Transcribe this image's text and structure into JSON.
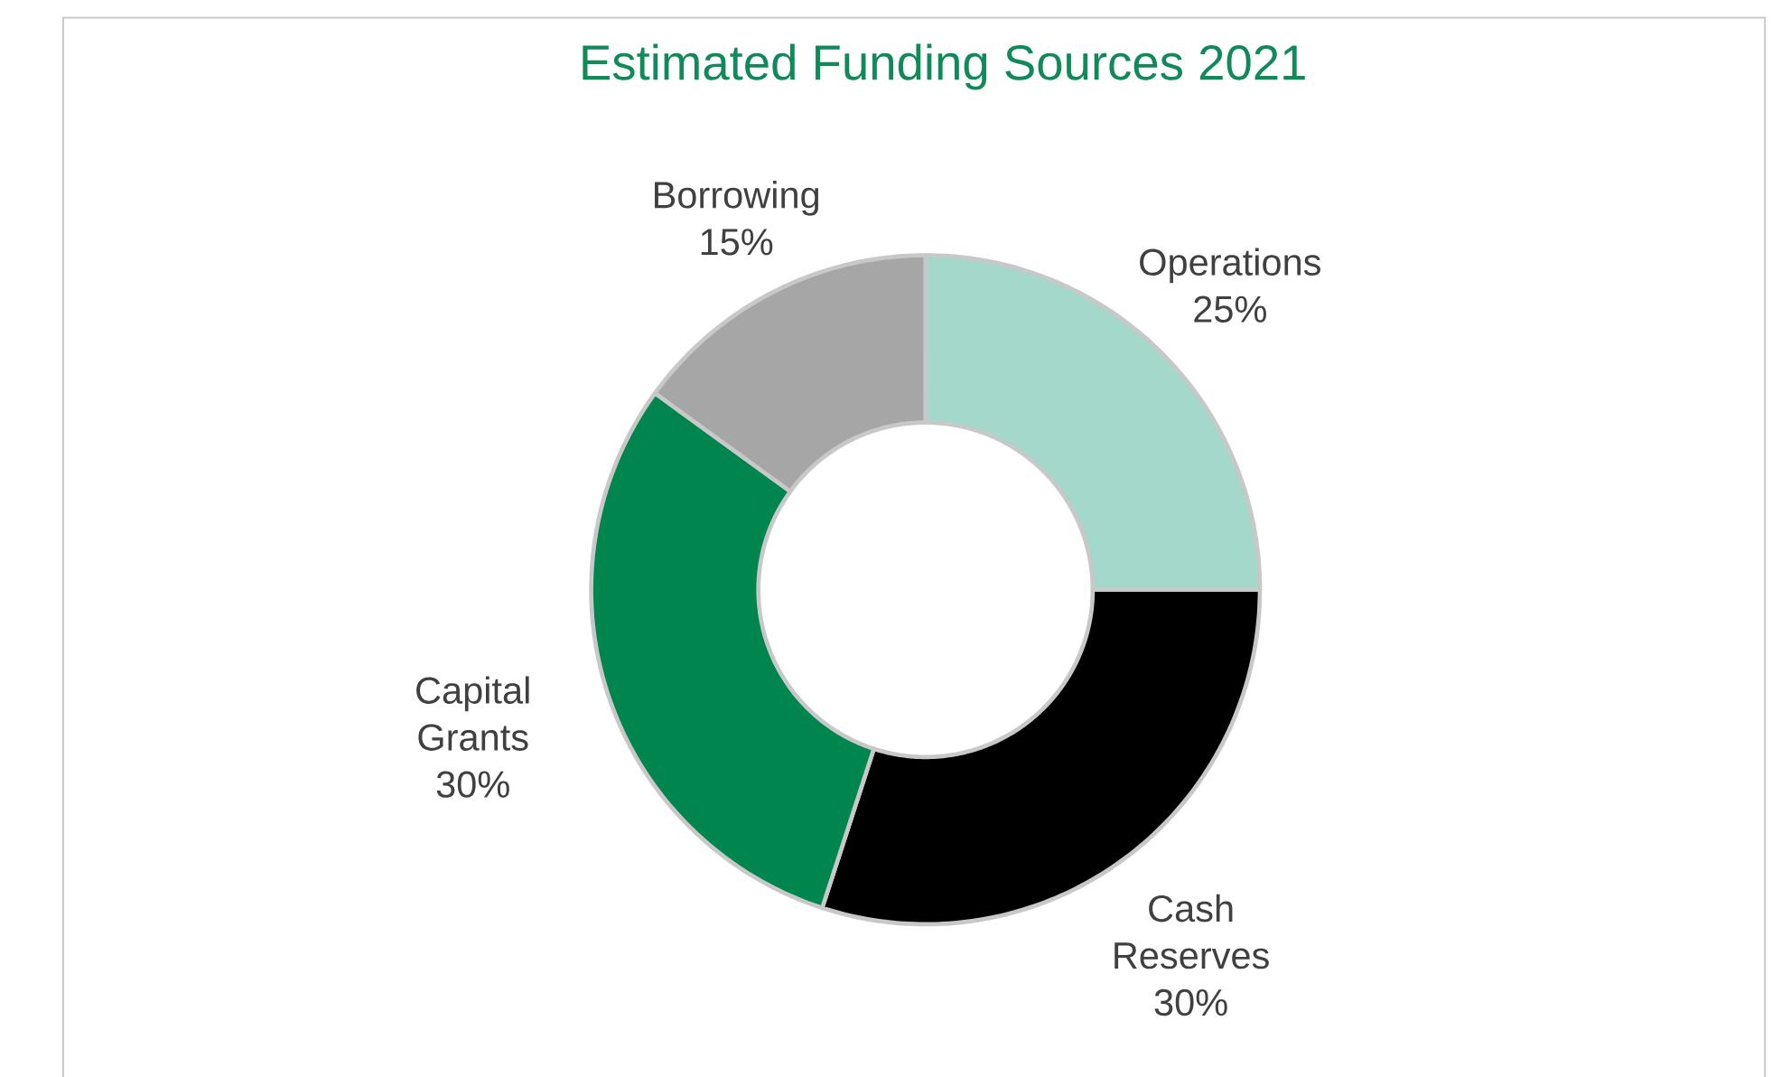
{
  "chart_data": {
    "type": "donut",
    "title": "Estimated Funding Sources 2021",
    "categories": [
      "Operations",
      "Cash Reserves",
      "Capital Grants",
      "Borrowing"
    ],
    "values": [
      25,
      30,
      30,
      15
    ],
    "value_labels": [
      "25%",
      "30%",
      "30%",
      "15%"
    ],
    "colors": [
      "#a3d8cb",
      "#000000",
      "#00854f",
      "#a6a6a6"
    ]
  }
}
